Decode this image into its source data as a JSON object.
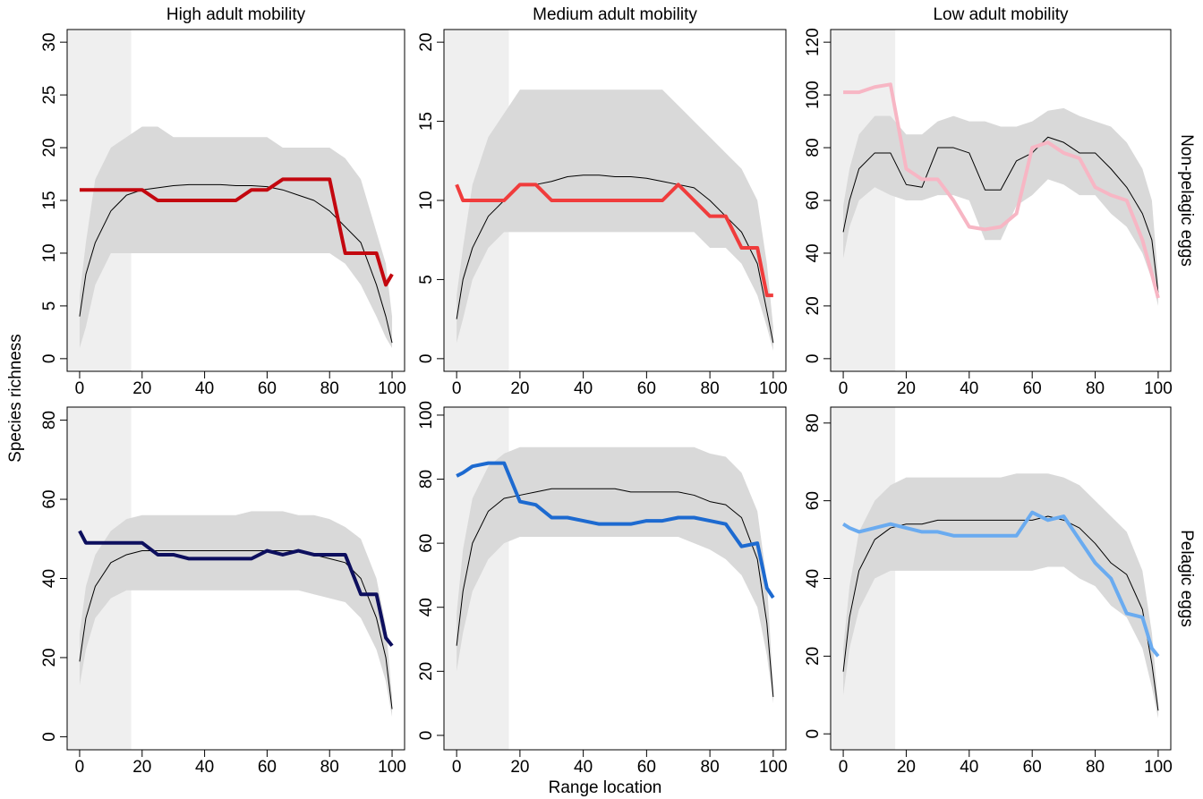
{
  "figure": {
    "column_titles": [
      "High adult mobility",
      "Medium adult mobility",
      "Low adult mobility"
    ],
    "row_titles": [
      "Non-pelagic eggs",
      "Pelagic eggs"
    ],
    "xlabel": "Range location",
    "ylabel": "Species richness"
  },
  "chart_data": [
    {
      "type": "line",
      "xlim": [
        -4,
        104
      ],
      "xticks": [
        0,
        20,
        40,
        60,
        80,
        100
      ],
      "ylim": [
        -1.2,
        31.2
      ],
      "yticks": [
        0,
        5,
        10,
        15,
        20,
        25,
        30
      ],
      "highlight_xlim": [
        -4,
        16.5
      ],
      "highlight_color": "#efefef",
      "x": [
        0,
        2,
        5,
        10,
        15,
        20,
        25,
        30,
        35,
        40,
        45,
        50,
        55,
        60,
        65,
        70,
        75,
        80,
        85,
        90,
        95,
        98,
        100
      ],
      "band": {
        "color": "#d9d9d9",
        "lower": [
          1,
          3,
          7,
          10,
          10,
          10,
          10,
          10,
          10,
          10,
          10,
          10,
          10,
          10,
          10,
          10,
          10,
          10,
          9,
          7,
          4,
          2,
          1
        ],
        "upper": [
          6,
          11,
          17,
          20,
          21,
          22,
          22,
          21,
          21,
          21,
          21,
          21,
          21,
          21,
          20,
          20,
          20,
          20,
          19,
          17,
          12,
          9,
          4
        ]
      },
      "series": [
        {
          "color": "#000000",
          "width": 1,
          "values": [
            4,
            8,
            11,
            14,
            15.5,
            16,
            16.2,
            16.4,
            16.5,
            16.5,
            16.5,
            16.4,
            16.4,
            16.3,
            16,
            15.5,
            15,
            14,
            12.5,
            11,
            7,
            4,
            1.5
          ]
        },
        {
          "color": "#c3070f",
          "width": 4,
          "values": [
            16,
            16,
            16,
            16,
            16,
            16,
            15,
            15,
            15,
            15,
            15,
            15,
            16,
            16,
            17,
            17,
            17,
            17,
            10,
            10,
            10,
            7,
            8
          ]
        }
      ]
    },
    {
      "type": "line",
      "xlim": [
        -4,
        104
      ],
      "xticks": [
        0,
        20,
        40,
        60,
        80,
        100
      ],
      "ylim": [
        -0.8,
        20.8
      ],
      "yticks": [
        0,
        5,
        10,
        15,
        20
      ],
      "highlight_xlim": [
        -4,
        16.5
      ],
      "highlight_color": "#efefef",
      "x": [
        0,
        2,
        5,
        10,
        15,
        20,
        25,
        30,
        35,
        40,
        45,
        50,
        55,
        60,
        65,
        70,
        75,
        80,
        85,
        90,
        95,
        98,
        100
      ],
      "band": {
        "color": "#d9d9d9",
        "lower": [
          1,
          2.5,
          5,
          7,
          8,
          8,
          8,
          8,
          8,
          8,
          8,
          8,
          8,
          8,
          8,
          8,
          8,
          7,
          7,
          6,
          4,
          2,
          0.5
        ],
        "upper": [
          4,
          7,
          11,
          14,
          15.5,
          17,
          17,
          17,
          17,
          17,
          17,
          17,
          17,
          17,
          17,
          16,
          15,
          14,
          13,
          12,
          10,
          6,
          2
        ]
      },
      "series": [
        {
          "color": "#000000",
          "width": 1,
          "values": [
            2.5,
            5,
            7,
            9,
            10,
            11,
            11,
            11.2,
            11.5,
            11.6,
            11.6,
            11.5,
            11.5,
            11.4,
            11.2,
            11,
            10.8,
            10,
            9,
            8,
            6,
            3,
            1
          ]
        },
        {
          "color": "#f03c3c",
          "width": 4,
          "values": [
            11,
            10,
            10,
            10,
            10,
            11,
            11,
            10,
            10,
            10,
            10,
            10,
            10,
            10,
            10,
            11,
            10,
            9,
            9,
            7,
            7,
            4,
            4
          ]
        }
      ]
    },
    {
      "type": "line",
      "xlim": [
        -4,
        104
      ],
      "xticks": [
        0,
        20,
        40,
        60,
        80,
        100
      ],
      "ylim": [
        -4.8,
        124.8
      ],
      "yticks": [
        0,
        20,
        40,
        60,
        80,
        100,
        120
      ],
      "highlight_xlim": [
        -4,
        16.5
      ],
      "highlight_color": "#efefef",
      "x": [
        0,
        2,
        5,
        10,
        15,
        20,
        25,
        30,
        35,
        40,
        45,
        50,
        55,
        60,
        65,
        70,
        75,
        80,
        85,
        90,
        95,
        98,
        100
      ],
      "band": {
        "color": "#d9d9d9",
        "lower": [
          38,
          50,
          60,
          65,
          62,
          60,
          60,
          62,
          62,
          60,
          45,
          45,
          58,
          62,
          68,
          66,
          62,
          62,
          55,
          50,
          40,
          30,
          20
        ],
        "upper": [
          58,
          72,
          85,
          92,
          92,
          85,
          85,
          90,
          92,
          90,
          90,
          88,
          88,
          90,
          94,
          95,
          92,
          90,
          88,
          82,
          72,
          60,
          30
        ]
      },
      "series": [
        {
          "color": "#000000",
          "width": 1,
          "values": [
            48,
            60,
            72,
            78,
            78,
            66,
            65,
            80,
            80,
            78,
            64,
            64,
            75,
            78,
            84,
            82,
            78,
            78,
            72,
            65,
            55,
            45,
            25
          ]
        },
        {
          "color": "#f7b6c4",
          "width": 4,
          "values": [
            101,
            101,
            101,
            103,
            104,
            72,
            68,
            68,
            60,
            50,
            49,
            50,
            55,
            80,
            82,
            78,
            76,
            65,
            62,
            60,
            45,
            32,
            23
          ]
        }
      ]
    },
    {
      "type": "line",
      "xlim": [
        -4,
        104
      ],
      "xticks": [
        0,
        20,
        40,
        60,
        80,
        100
      ],
      "ylim": [
        -3.3,
        83.3
      ],
      "yticks": [
        0,
        20,
        40,
        60,
        80
      ],
      "highlight_xlim": [
        -4,
        16.5
      ],
      "highlight_color": "#efefef",
      "x": [
        0,
        2,
        5,
        10,
        15,
        20,
        25,
        30,
        35,
        40,
        45,
        50,
        55,
        60,
        65,
        70,
        75,
        80,
        85,
        90,
        95,
        98,
        100
      ],
      "band": {
        "color": "#d9d9d9",
        "lower": [
          13,
          22,
          30,
          35,
          37,
          37,
          37,
          37,
          37,
          37,
          37,
          37,
          37,
          37,
          37,
          37,
          36,
          35,
          34,
          30,
          22,
          14,
          5
        ],
        "upper": [
          26,
          38,
          46,
          52,
          55,
          56,
          56,
          56,
          56,
          56,
          56,
          56,
          57,
          57,
          57,
          56,
          56,
          55,
          53,
          50,
          40,
          28,
          10
        ]
      },
      "series": [
        {
          "color": "#000000",
          "width": 1,
          "values": [
            19,
            30,
            38,
            44,
            46,
            47,
            47,
            47,
            47,
            47,
            47,
            47,
            47,
            47,
            47,
            47,
            46,
            45,
            44,
            40,
            30,
            20,
            7
          ]
        },
        {
          "color": "#0d0f5e",
          "width": 4,
          "values": [
            52,
            49,
            49,
            49,
            49,
            49,
            46,
            46,
            45,
            45,
            45,
            45,
            45,
            47,
            46,
            47,
            46,
            46,
            46,
            36,
            36,
            25,
            23
          ]
        }
      ]
    },
    {
      "type": "line",
      "xlim": [
        -4,
        104
      ],
      "xticks": [
        0,
        20,
        40,
        60,
        80,
        100
      ],
      "ylim": [
        -4.5,
        102.5
      ],
      "yticks": [
        0,
        20,
        40,
        60,
        80,
        100
      ],
      "highlight_xlim": [
        -4,
        16.5
      ],
      "highlight_color": "#efefef",
      "x": [
        0,
        2,
        5,
        10,
        15,
        20,
        25,
        30,
        35,
        40,
        45,
        50,
        55,
        60,
        65,
        70,
        75,
        80,
        85,
        90,
        95,
        98,
        100
      ],
      "band": {
        "color": "#d9d9d9",
        "lower": [
          20,
          32,
          45,
          55,
          60,
          62,
          62,
          62,
          62,
          62,
          62,
          62,
          62,
          62,
          62,
          62,
          60,
          58,
          55,
          50,
          40,
          25,
          10
        ],
        "upper": [
          38,
          58,
          74,
          84,
          88,
          90,
          90,
          90,
          90,
          90,
          90,
          90,
          90,
          90,
          90,
          90,
          90,
          88,
          87,
          82,
          70,
          48,
          15
        ]
      },
      "series": [
        {
          "color": "#000000",
          "width": 1,
          "values": [
            28,
            45,
            60,
            70,
            74,
            75,
            76,
            77,
            77,
            77,
            77,
            77,
            76,
            76,
            76,
            76,
            75,
            73,
            72,
            68,
            55,
            35,
            12
          ]
        },
        {
          "color": "#1d6ad0",
          "width": 4,
          "values": [
            81,
            82,
            84,
            85,
            85,
            73,
            72,
            68,
            68,
            67,
            66,
            66,
            66,
            67,
            67,
            68,
            68,
            67,
            66,
            59,
            60,
            46,
            43
          ]
        }
      ]
    },
    {
      "type": "line",
      "xlim": [
        -4,
        104
      ],
      "xticks": [
        0,
        20,
        40,
        60,
        80,
        100
      ],
      "ylim": [
        -4.1,
        84.1
      ],
      "yticks": [
        0,
        20,
        40,
        60,
        80
      ],
      "highlight_xlim": [
        -4,
        16.5
      ],
      "highlight_color": "#efefef",
      "x": [
        0,
        2,
        5,
        10,
        15,
        20,
        25,
        30,
        35,
        40,
        45,
        50,
        55,
        60,
        65,
        70,
        75,
        80,
        85,
        90,
        95,
        98,
        100
      ],
      "band": {
        "color": "#d9d9d9",
        "lower": [
          10,
          22,
          32,
          40,
          42,
          42,
          42,
          42,
          42,
          42,
          42,
          42,
          42,
          42,
          43,
          43,
          40,
          38,
          33,
          30,
          22,
          12,
          4
        ],
        "upper": [
          22,
          38,
          52,
          60,
          64,
          66,
          66,
          66,
          66,
          66,
          66,
          66,
          67,
          67,
          67,
          66,
          64,
          60,
          56,
          52,
          42,
          26,
          8
        ]
      },
      "series": [
        {
          "color": "#000000",
          "width": 1,
          "values": [
            16,
            30,
            42,
            50,
            53,
            54,
            54,
            55,
            55,
            55,
            55,
            55,
            55,
            55,
            56,
            55,
            53,
            49,
            44,
            41,
            32,
            18,
            6
          ]
        },
        {
          "color": "#6aabf0",
          "width": 4,
          "values": [
            54,
            53,
            52,
            53,
            54,
            53,
            52,
            52,
            51,
            51,
            51,
            51,
            51,
            57,
            55,
            56,
            50,
            44,
            40,
            31,
            30,
            22,
            20
          ]
        }
      ]
    }
  ]
}
